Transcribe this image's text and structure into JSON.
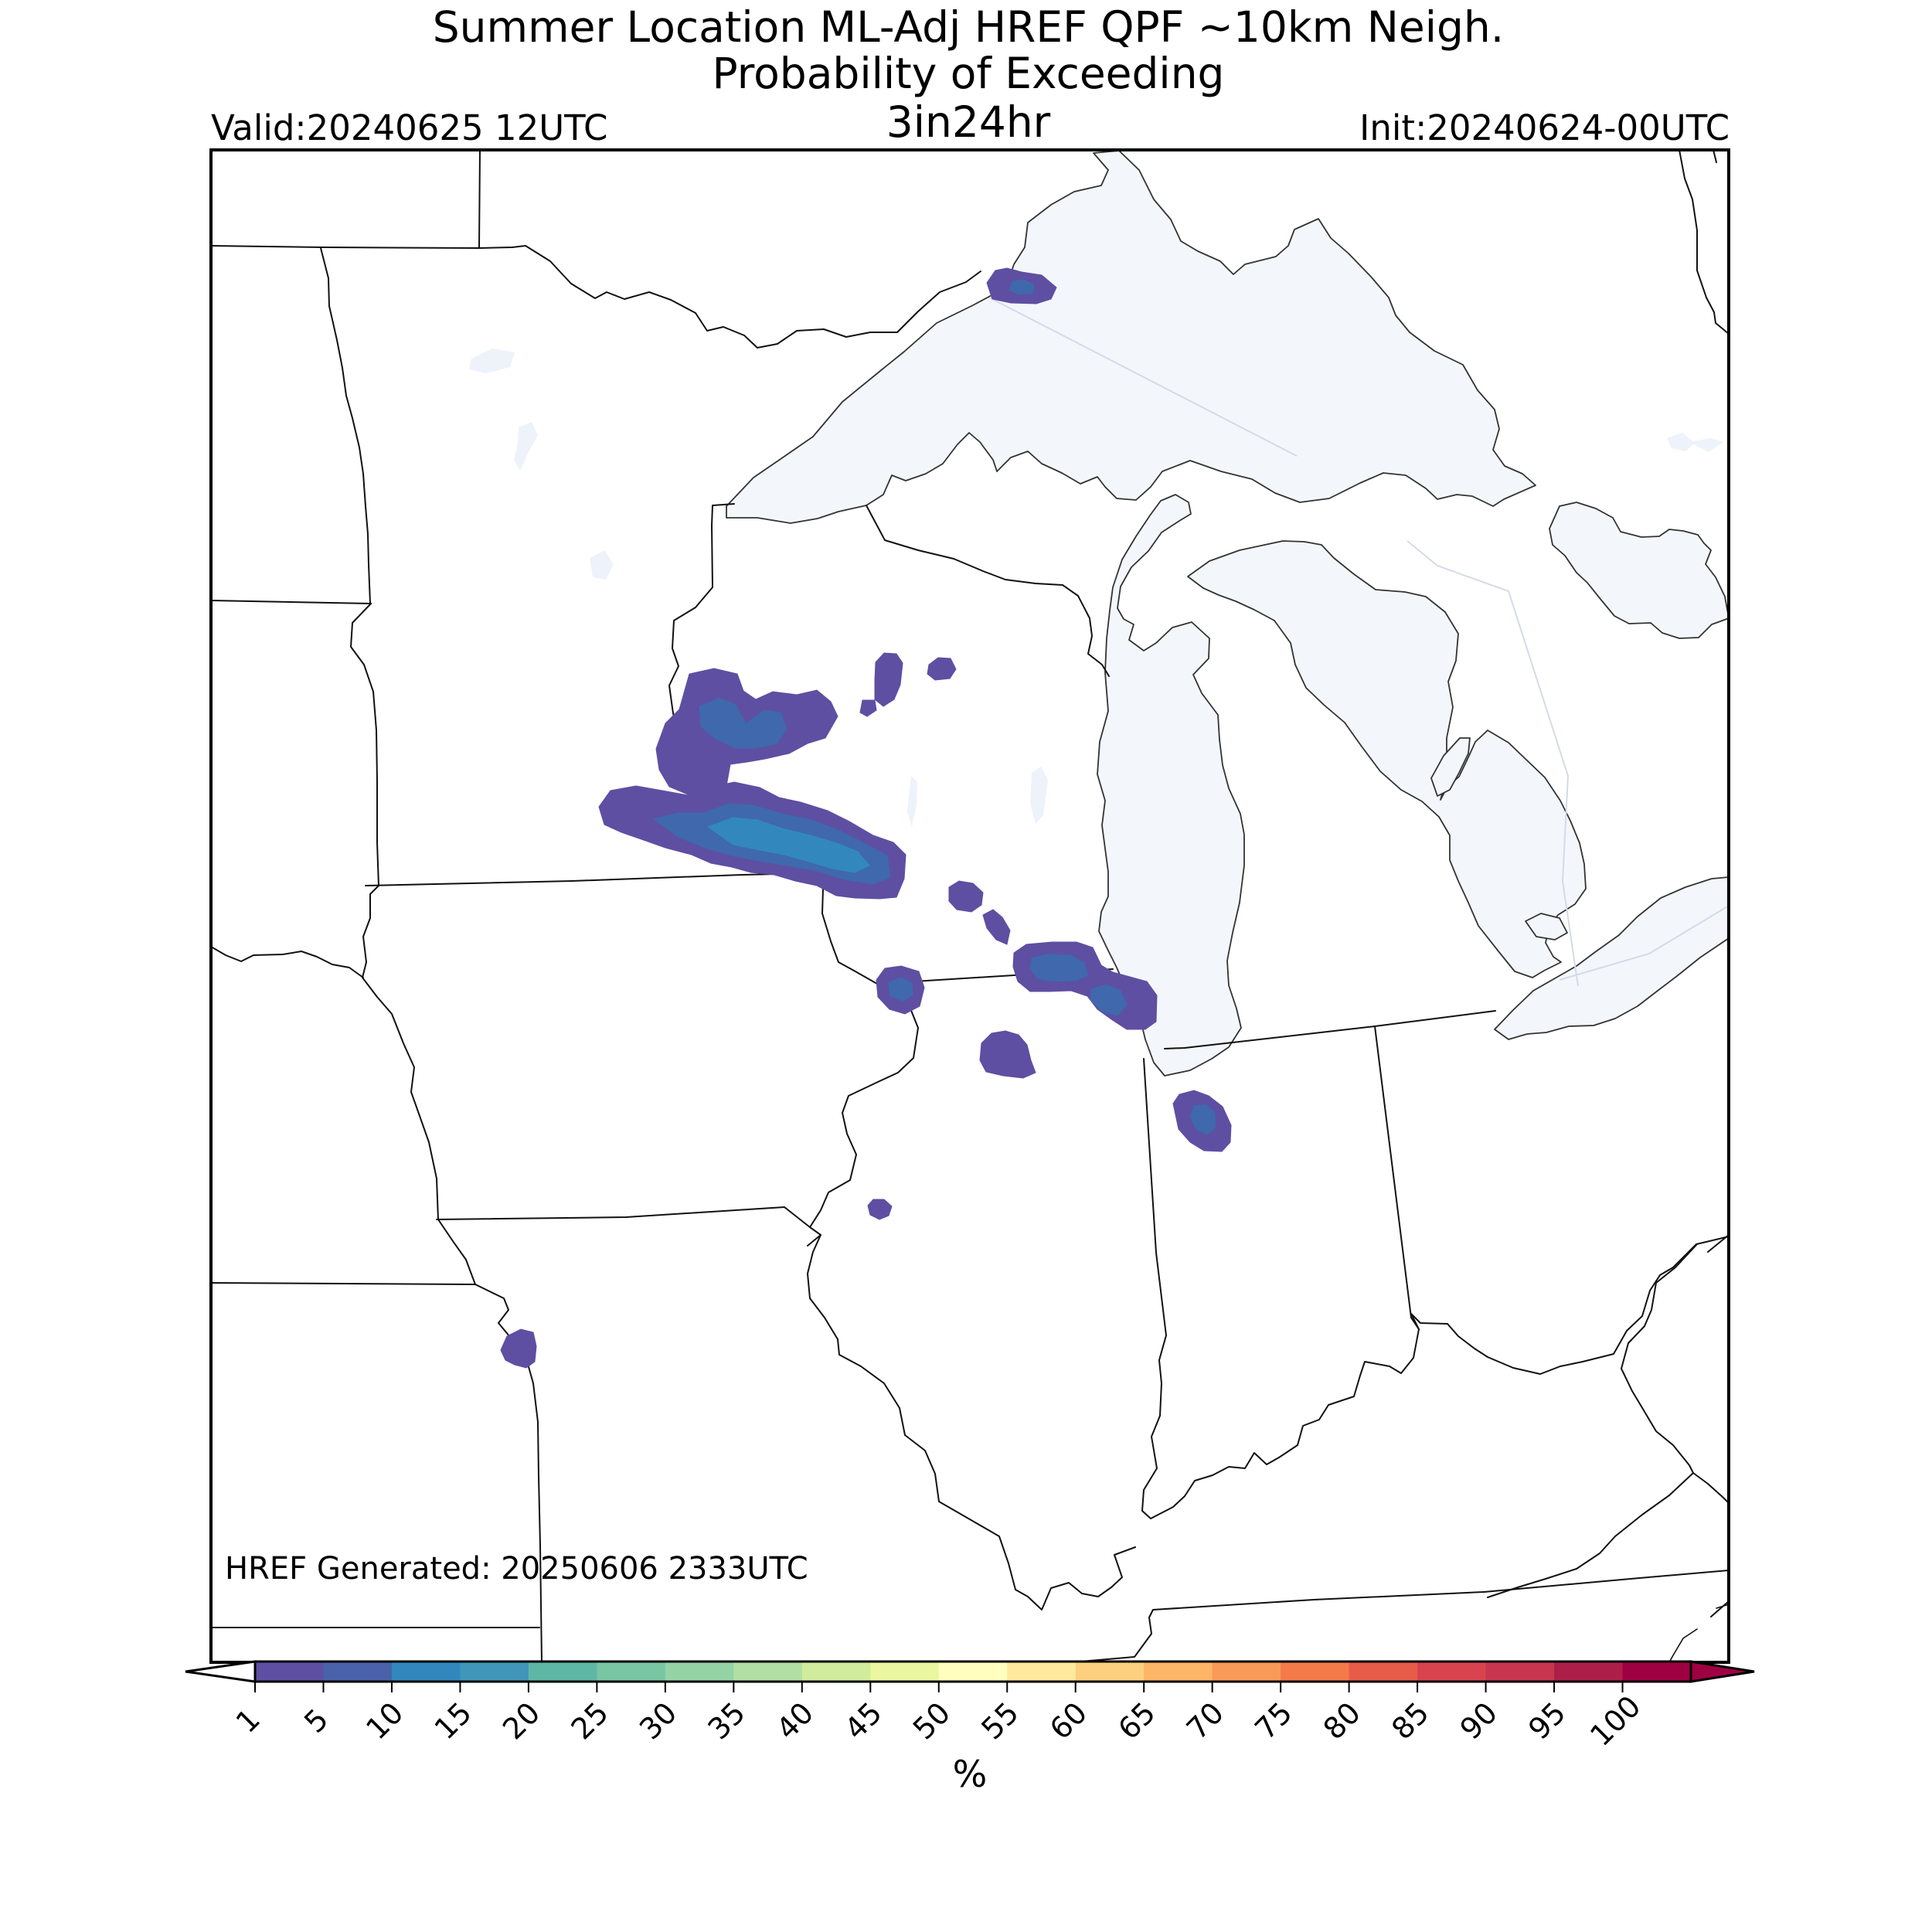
{
  "title": {
    "line1": "Summer Location ML-Adj HREF QPF ~10km Neigh.",
    "line2": "Probability of Exceeding",
    "line3": "3in24hr"
  },
  "valid_time": "Valid:20240625 12UTC",
  "init_time": "Init:20240624-00UTC",
  "generated_time": "HREF Generated: 20250606 2333UTC",
  "colorbar": {
    "unit_label": "%",
    "ticks": [
      "1",
      "5",
      "10",
      "15",
      "20",
      "25",
      "30",
      "35",
      "40",
      "45",
      "50",
      "55",
      "60",
      "65",
      "70",
      "75",
      "80",
      "85",
      "90",
      "95",
      "100"
    ],
    "colors": [
      "#5e4fa2",
      "#4a62aa",
      "#3288bd",
      "#3f96b7",
      "#5eb7a5",
      "#78c6a4",
      "#94d4a4",
      "#b2dfa3",
      "#d0ec9c",
      "#eaf6a0",
      "#fffebe",
      "#fee99c",
      "#fdd07f",
      "#fdb567",
      "#fa9a59",
      "#f57a4a",
      "#e75c48",
      "#d8434e",
      "#c6364f",
      "#ad1f48",
      "#9e0142"
    ],
    "under_color": "#ffffff",
    "over_color": "#9e0142"
  },
  "map": {
    "region": "Upper Midwest / Great Lakes",
    "background_color": "#ffffff",
    "lake_color": "#f3f6fb",
    "boundary_color": "#111111"
  },
  "probability_areas": [
    {
      "name": "lake-superior-cell",
      "level": "1-5"
    },
    {
      "name": "northwest-wisconsin-cell",
      "level": "5-10"
    },
    {
      "name": "west-central-wisconsin-band",
      "level": "10-15"
    },
    {
      "name": "central-wisconsin-small-cells",
      "level": "1-5"
    },
    {
      "name": "southeast-wisconsin-cluster",
      "level": "5-10"
    },
    {
      "name": "northwest-indiana-cell",
      "level": "5-10"
    },
    {
      "name": "missouri-cell",
      "level": "1-5"
    }
  ]
}
